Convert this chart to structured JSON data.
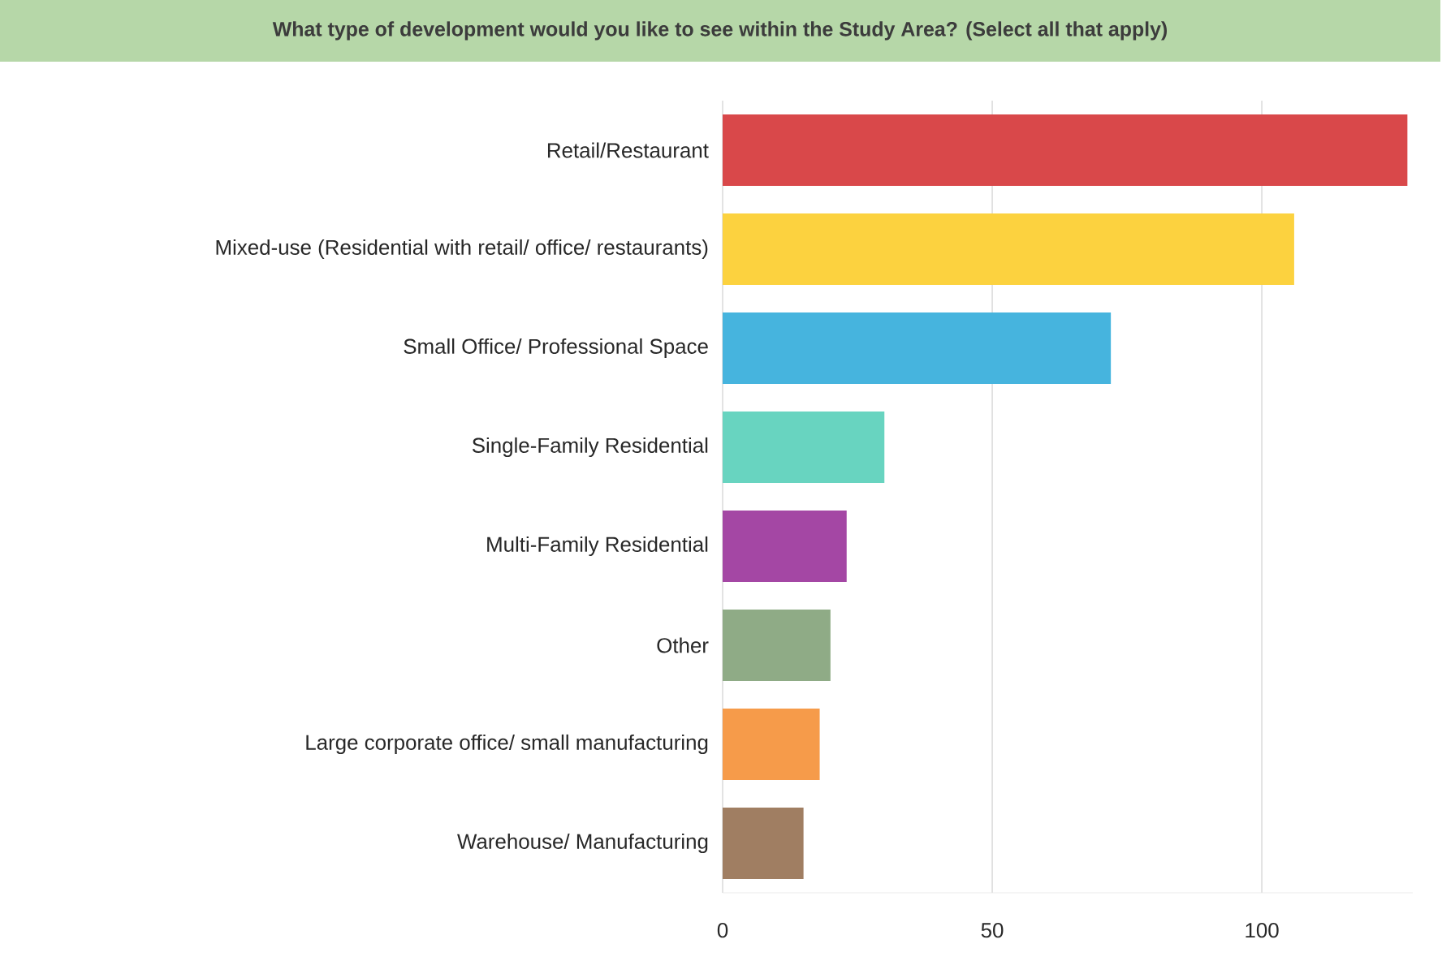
{
  "chart_data": {
    "type": "bar",
    "orientation": "horizontal",
    "title": "What type of development would you like to see within the Study Area? (Select all that apply)",
    "categories": [
      "Retail/Restaurant",
      "Mixed-use (Residential with retail/ office/ restaurants)",
      "Small Office/ Professional Space",
      "Single-Family Residential",
      "Multi-Family Residential",
      "Other",
      "Large corporate office/ small manufacturing",
      "Warehouse/ Manufacturing"
    ],
    "values": [
      127,
      106,
      72,
      30,
      23,
      20,
      18,
      15
    ],
    "colors": [
      "#d9484a",
      "#fcd23f",
      "#46b4de",
      "#68d4c0",
      "#a447a4",
      "#8fab86",
      "#f69b4a",
      "#a07e62"
    ],
    "xlim": [
      0,
      128
    ],
    "xticks": [
      0,
      50,
      100
    ],
    "grid": "x"
  }
}
